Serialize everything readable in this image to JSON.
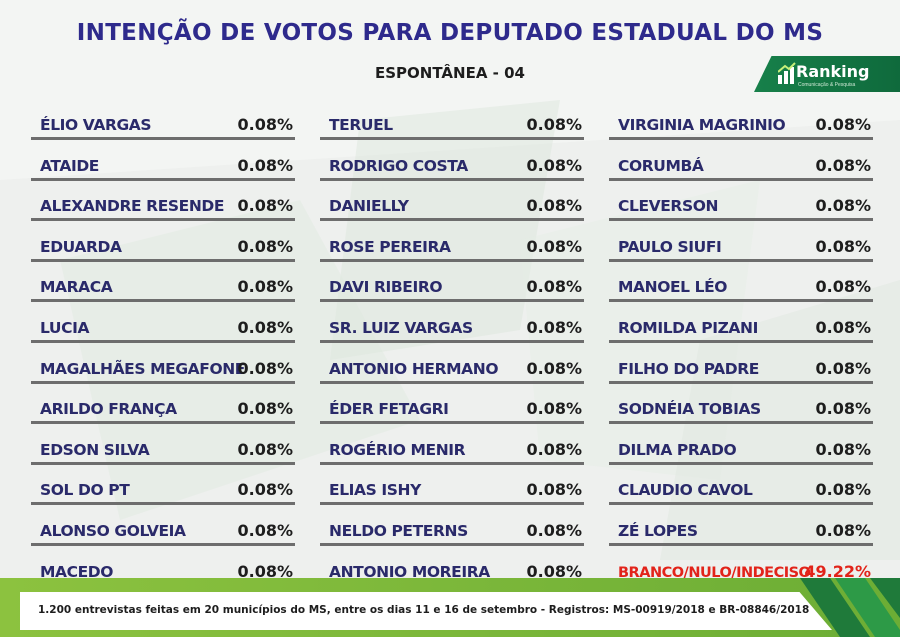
{
  "title": "INTENÇÃO DE VOTOS PARA DEPUTADO ESTADUAL DO MS",
  "subtitle": "ESPONTÂNEA - 04",
  "logo": {
    "name": "Ranking",
    "tagline": "Comunicação & Pesquisa",
    "icon": "bar-chart-arrow-icon"
  },
  "colors": {
    "title": "#2e2a8c",
    "highlight": "#e2231a",
    "accent_green": "#8cc23f",
    "logo_green": "#17804a"
  },
  "columns": [
    [
      {
        "name": "ÉLIO VARGAS",
        "pct": "0.08%"
      },
      {
        "name": "ATAIDE",
        "pct": "0.08%"
      },
      {
        "name": "ALEXANDRE RESENDE",
        "pct": "0.08%"
      },
      {
        "name": "EDUARDA",
        "pct": "0.08%"
      },
      {
        "name": "MARACA",
        "pct": "0.08%"
      },
      {
        "name": "LUCIA",
        "pct": "0.08%"
      },
      {
        "name": "MAGALHÃES MEGAFONE",
        "pct": "0.08%"
      },
      {
        "name": "ARILDO FRANÇA",
        "pct": "0.08%"
      },
      {
        "name": "EDSON SILVA",
        "pct": "0.08%"
      },
      {
        "name": "SOL DO PT",
        "pct": "0.08%"
      },
      {
        "name": "ALONSO GOLVEIA",
        "pct": "0.08%"
      },
      {
        "name": "MACEDO",
        "pct": "0.08%"
      }
    ],
    [
      {
        "name": "TERUEL",
        "pct": "0.08%"
      },
      {
        "name": "RODRIGO COSTA",
        "pct": "0.08%"
      },
      {
        "name": "DANIELLY",
        "pct": "0.08%"
      },
      {
        "name": "ROSE PEREIRA",
        "pct": "0.08%"
      },
      {
        "name": "DAVI RIBEIRO",
        "pct": "0.08%"
      },
      {
        "name": "SR. LUIZ VARGAS",
        "pct": "0.08%"
      },
      {
        "name": "ANTONIO HERMANO",
        "pct": "0.08%"
      },
      {
        "name": "ÉDER FETAGRI",
        "pct": "0.08%"
      },
      {
        "name": "ROGÉRIO MENIR",
        "pct": "0.08%"
      },
      {
        "name": "ELIAS ISHY",
        "pct": "0.08%"
      },
      {
        "name": "NELDO PETERNS",
        "pct": "0.08%"
      },
      {
        "name": "ANTONIO MOREIRA",
        "pct": "0.08%"
      }
    ],
    [
      {
        "name": "VIRGINIA MAGRINIO",
        "pct": "0.08%"
      },
      {
        "name": "CORUMBÁ",
        "pct": "0.08%"
      },
      {
        "name": "CLEVERSON",
        "pct": "0.08%"
      },
      {
        "name": "PAULO SIUFI",
        "pct": "0.08%"
      },
      {
        "name": "MANOEL LÉO",
        "pct": "0.08%"
      },
      {
        "name": "ROMILDA PIZANI",
        "pct": "0.08%"
      },
      {
        "name": "FILHO DO PADRE",
        "pct": "0.08%"
      },
      {
        "name": "SODNÉIA TOBIAS",
        "pct": "0.08%"
      },
      {
        "name": "DILMA PRADO",
        "pct": "0.08%"
      },
      {
        "name": "CLAUDIO CAVOL",
        "pct": "0.08%"
      },
      {
        "name": "ZÉ LOPES",
        "pct": "0.08%"
      },
      {
        "name": "BRANCO/NULO/INDECISO",
        "pct": "49.22%",
        "highlight": true
      }
    ]
  ],
  "footer": "1.200 entrevistas feitas em 20 municípios do MS, entre os dias 11 e 16 de setembro - Registros:  MS-00919/2018 e BR-08846/2018"
}
